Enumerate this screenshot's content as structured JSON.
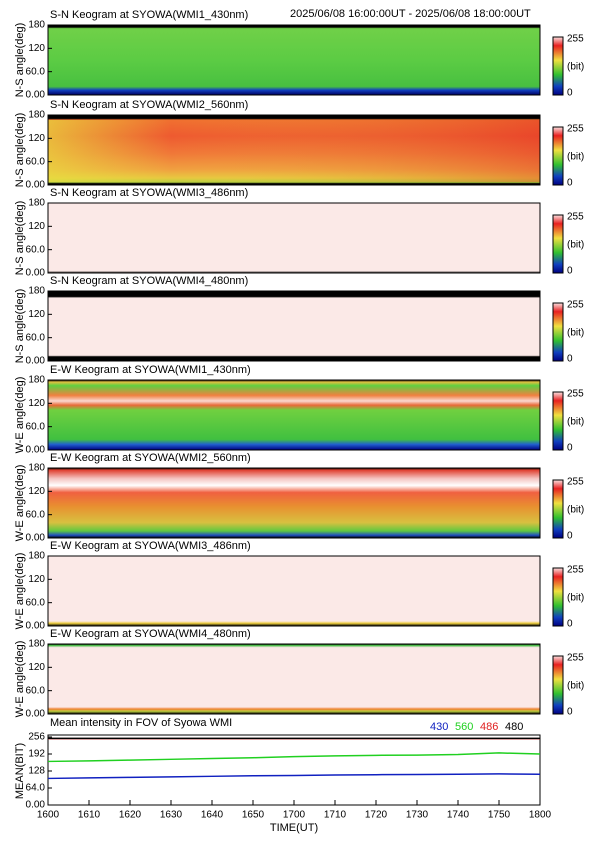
{
  "header": {
    "date_range": "2025/06/08 16:00:00UT - 2025/06/08 18:00:00UT"
  },
  "keograms": {
    "ylim": [
      0,
      180
    ],
    "yticks": [
      {
        "value": 0,
        "label": "0.00"
      },
      {
        "value": 60,
        "label": "60.0"
      },
      120,
      180
    ],
    "colorbar": {
      "ticks": [
        0,
        255
      ],
      "label": "(bit)"
    },
    "panels": [
      {
        "title": "S-N Keogram at SYOWA(WMI1_430nm)",
        "ylabel": "N-S angle(deg)"
      },
      {
        "title": "S-N Keogram at SYOWA(WMI2_560nm)",
        "ylabel": "N-S angle(deg)"
      },
      {
        "title": "S-N Keogram at SYOWA(WMI3_486nm)",
        "ylabel": "N-S angle(deg)"
      },
      {
        "title": "S-N Keogram at SYOWA(WMI4_480nm)",
        "ylabel": "N-S angle(deg)"
      },
      {
        "title": "E-W Keogram at SYOWA(WMI1_430nm)",
        "ylabel": "W-E angle(deg)"
      },
      {
        "title": "E-W Keogram at SYOWA(WMI2_560nm)",
        "ylabel": "W-E angle(deg)"
      },
      {
        "title": "E-W Keogram at SYOWA(WMI3_486nm)",
        "ylabel": "W-E angle(deg)"
      },
      {
        "title": "E-W Keogram at SYOWA(WMI4_480nm)",
        "ylabel": "W-E angle(deg)"
      }
    ]
  },
  "chart_data": {
    "type": "line",
    "title": "Mean intensity in FOV of Syowa WMI",
    "ylabel": "MEAN(BIT)",
    "xlabel": "TIME(UT)",
    "x": [
      0,
      10,
      20,
      30,
      40,
      50,
      60,
      70,
      80,
      90,
      100,
      110,
      120
    ],
    "xlim": [
      0,
      120
    ],
    "xticks": [
      {
        "value": 0,
        "label": "1600"
      },
      {
        "value": 10,
        "label": "1610"
      },
      {
        "value": 20,
        "label": "1620"
      },
      {
        "value": 30,
        "label": "1630"
      },
      {
        "value": 40,
        "label": "1640"
      },
      {
        "value": 50,
        "label": "1650"
      },
      {
        "value": 60,
        "label": "1700"
      },
      {
        "value": 70,
        "label": "1710"
      },
      {
        "value": 80,
        "label": "1720"
      },
      {
        "value": 90,
        "label": "1730"
      },
      {
        "value": 100,
        "label": "1740"
      },
      {
        "value": 110,
        "label": "1750"
      },
      {
        "value": 120,
        "label": "1800"
      }
    ],
    "ylim": [
      0,
      256
    ],
    "yticks": [
      {
        "value": 0,
        "label": "0.00"
      },
      {
        "value": 64,
        "label": "64.0"
      },
      128,
      192,
      256
    ],
    "series": [
      {
        "name": "430",
        "color": "#1020c0",
        "values": [
          100,
          102,
          104,
          106,
          108,
          110,
          111,
          113,
          114,
          115,
          116,
          117,
          116
        ]
      },
      {
        "name": "560",
        "color": "#20d020",
        "values": [
          164,
          166,
          169,
          172,
          175,
          178,
          182,
          185,
          187,
          188,
          190,
          196,
          192
        ]
      },
      {
        "name": "486",
        "color": "#e02020",
        "values": [
          250,
          250,
          250,
          250,
          250,
          250,
          250,
          250,
          250,
          250,
          250,
          250,
          250
        ]
      },
      {
        "name": "480",
        "color": "#000000",
        "values": [
          251,
          251,
          251,
          251,
          251,
          251,
          251,
          251,
          251,
          251,
          251,
          251,
          251
        ]
      }
    ]
  }
}
